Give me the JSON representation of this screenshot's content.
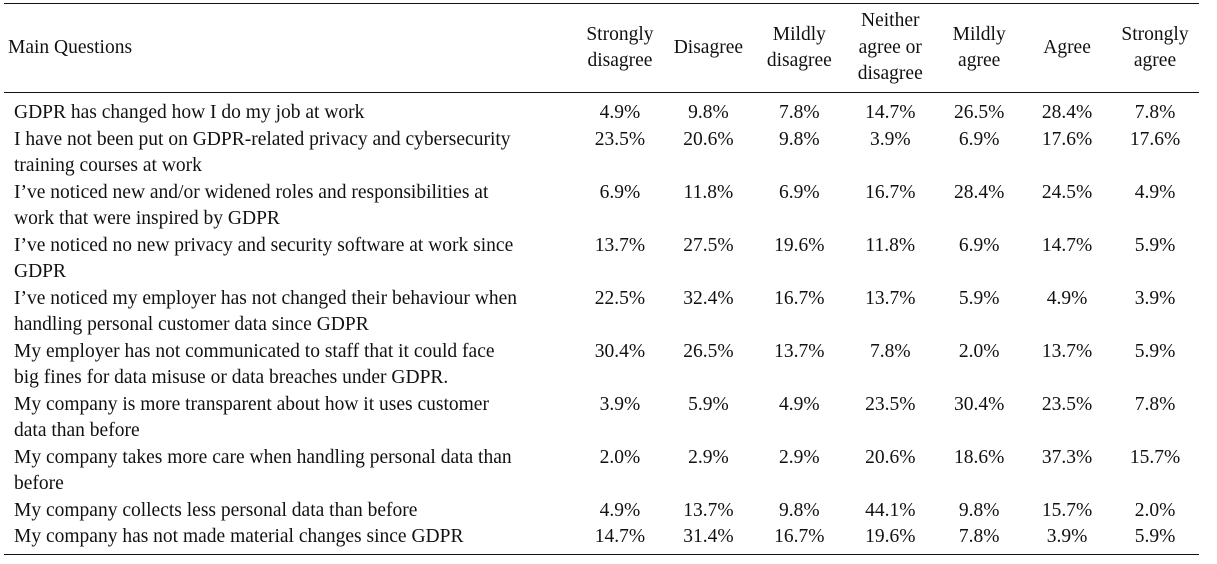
{
  "table": {
    "question_header": "Main Questions",
    "column_headers": [
      [
        "Strongly",
        "disagree"
      ],
      [
        "Disagree"
      ],
      [
        "Mildly",
        "disagree"
      ],
      [
        "Neither",
        "agree or",
        "disagree"
      ],
      [
        "Mildly",
        "agree"
      ],
      [
        "Agree"
      ],
      [
        "Strongly",
        "agree"
      ]
    ],
    "rows": [
      {
        "question": [
          "GDPR has changed how I do my job at work"
        ],
        "values": [
          "4.9%",
          "9.8%",
          "7.8%",
          "14.7%",
          "26.5%",
          "28.4%",
          "7.8%"
        ]
      },
      {
        "question": [
          "I have not been put on GDPR-related privacy and cybersecurity",
          "training courses at work"
        ],
        "values": [
          "23.5%",
          "20.6%",
          "9.8%",
          "3.9%",
          "6.9%",
          "17.6%",
          "17.6%"
        ]
      },
      {
        "question": [
          "I’ve noticed new and/or widened roles and responsibilities at",
          "work that were inspired by GDPR"
        ],
        "values": [
          "6.9%",
          "11.8%",
          "6.9%",
          "16.7%",
          "28.4%",
          "24.5%",
          "4.9%"
        ]
      },
      {
        "question": [
          "I’ve noticed no new privacy and security software at work since",
          "GDPR"
        ],
        "values": [
          "13.7%",
          "27.5%",
          "19.6%",
          "11.8%",
          "6.9%",
          "14.7%",
          "5.9%"
        ]
      },
      {
        "question": [
          "I’ve noticed my employer has not changed their behaviour when",
          "handling personal customer data since GDPR"
        ],
        "values": [
          "22.5%",
          "32.4%",
          "16.7%",
          "13.7%",
          "5.9%",
          "4.9%",
          "3.9%"
        ]
      },
      {
        "question": [
          "My employer has not communicated to staff that it could face",
          "big fines for data misuse or data breaches under GDPR."
        ],
        "values": [
          "30.4%",
          "26.5%",
          "13.7%",
          "7.8%",
          "2.0%",
          "13.7%",
          "5.9%"
        ]
      },
      {
        "question": [
          "My company is more transparent about how it uses customer",
          "data than before"
        ],
        "values": [
          "3.9%",
          "5.9%",
          "4.9%",
          "23.5%",
          "30.4%",
          "23.5%",
          "7.8%"
        ]
      },
      {
        "question": [
          "My company takes more care when handling personal data than",
          "before"
        ],
        "values": [
          "2.0%",
          "2.9%",
          "2.9%",
          "20.6%",
          "18.6%",
          "37.3%",
          "15.7%"
        ]
      },
      {
        "question": [
          "My company collects less personal data than before"
        ],
        "values": [
          "4.9%",
          "13.7%",
          "9.8%",
          "44.1%",
          "9.8%",
          "15.7%",
          "2.0%"
        ]
      },
      {
        "question": [
          "My company has not made material changes since GDPR"
        ],
        "values": [
          "14.7%",
          "31.4%",
          "16.7%",
          "19.6%",
          "7.8%",
          "3.9%",
          "5.9%"
        ]
      }
    ]
  }
}
